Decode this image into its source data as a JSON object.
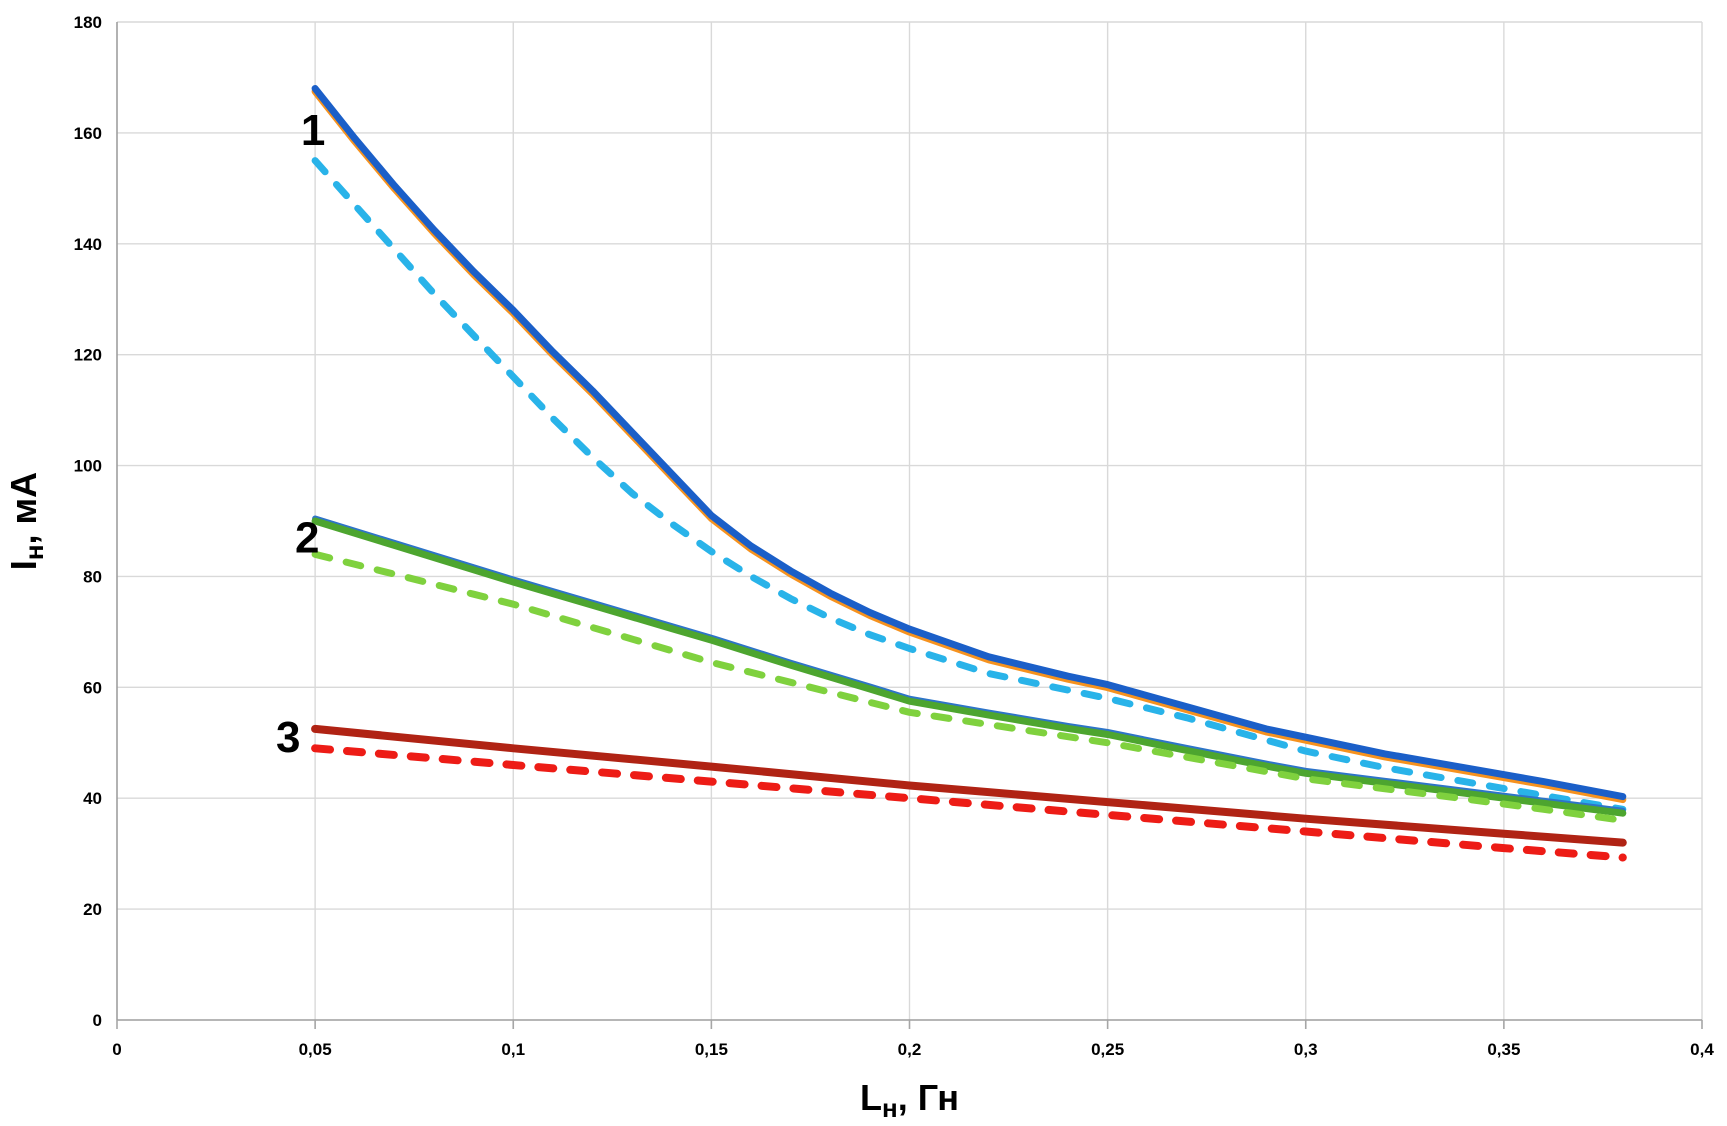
{
  "page": {
    "background": "#ffffff"
  },
  "chart_data": {
    "type": "line",
    "title": "",
    "xlabel": {
      "text": "Lн, Гн",
      "prefix": "L",
      "sub": "н",
      "suffix": ", Гн"
    },
    "ylabel": {
      "text": "Iн, мА",
      "prefix": "I",
      "sub": "н",
      "suffix": ", мА"
    },
    "xlim": [
      0,
      0.4
    ],
    "ylim": [
      0,
      180
    ],
    "grid": true,
    "legend_position": "none",
    "decimal_separator": ",",
    "colors": {
      "grid": "#d9d9d9",
      "axis": "#9e9e9e",
      "tick": "#a6a6a6",
      "text": "#000000",
      "background": "#ffffff",
      "curve1_solid": "#1B5FC8",
      "curve1_solid_edge": "#F6921E",
      "curve1_dashed": "#29B3E9",
      "curve2_solid": "#4DA52F",
      "curve2_solid_edge": "#2E74C8",
      "curve2_dashed": "#7FD13E",
      "curve3_solid": "#B02314",
      "curve3_dashed": "#ED1C16"
    },
    "x_ticks": [
      {
        "v": 0,
        "label": "0"
      },
      {
        "v": 0.05,
        "label": "0,05"
      },
      {
        "v": 0.1,
        "label": "0,1"
      },
      {
        "v": 0.15,
        "label": "0,15"
      },
      {
        "v": 0.2,
        "label": "0,2"
      },
      {
        "v": 0.25,
        "label": "0,25"
      },
      {
        "v": 0.3,
        "label": "0,3"
      },
      {
        "v": 0.35,
        "label": "0,35"
      },
      {
        "v": 0.4,
        "label": "0,4"
      }
    ],
    "y_ticks": [
      {
        "v": 0,
        "label": "0"
      },
      {
        "v": 20,
        "label": "20"
      },
      {
        "v": 40,
        "label": "40"
      },
      {
        "v": 60,
        "label": "60"
      },
      {
        "v": 80,
        "label": "80"
      },
      {
        "v": 100,
        "label": "100"
      },
      {
        "v": 120,
        "label": "120"
      },
      {
        "v": 140,
        "label": "140"
      },
      {
        "v": 160,
        "label": "160"
      },
      {
        "v": 180,
        "label": "180"
      }
    ],
    "curve_labels": [
      {
        "text": "1",
        "x": 0.0495,
        "y": 160.5
      },
      {
        "text": "2",
        "x": 0.048,
        "y": 87.0
      },
      {
        "text": "3",
        "x": 0.0432,
        "y": 51.0
      }
    ],
    "series": [
      {
        "name": "curve-1-solid",
        "curve": "1",
        "style": "solid",
        "width": 7,
        "color_key": "curve1_solid",
        "underlay": {
          "color_key": "curve1_solid_edge",
          "dy": 3,
          "width": 7
        },
        "points": [
          [
            0.05,
            168
          ],
          [
            0.06,
            159
          ],
          [
            0.07,
            150.5
          ],
          [
            0.08,
            142.5
          ],
          [
            0.09,
            135
          ],
          [
            0.1,
            128
          ],
          [
            0.11,
            120.5
          ],
          [
            0.12,
            113.5
          ],
          [
            0.13,
            106
          ],
          [
            0.14,
            98.5
          ],
          [
            0.15,
            91
          ],
          [
            0.16,
            85.5
          ],
          [
            0.17,
            81
          ],
          [
            0.18,
            77
          ],
          [
            0.19,
            73.5
          ],
          [
            0.2,
            70.5
          ],
          [
            0.22,
            65.5
          ],
          [
            0.24,
            62
          ],
          [
            0.25,
            60.5
          ],
          [
            0.27,
            56.5
          ],
          [
            0.29,
            52.5
          ],
          [
            0.3,
            51
          ],
          [
            0.32,
            48
          ],
          [
            0.34,
            45.5
          ],
          [
            0.36,
            43
          ],
          [
            0.38,
            40.3
          ]
        ]
      },
      {
        "name": "curve-1-dashed",
        "curve": "1",
        "style": "dashed",
        "width": 7,
        "color_key": "curve1_dashed",
        "points": [
          [
            0.05,
            155
          ],
          [
            0.06,
            147
          ],
          [
            0.07,
            139
          ],
          [
            0.08,
            131
          ],
          [
            0.09,
            123.5
          ],
          [
            0.1,
            116
          ],
          [
            0.11,
            108.5
          ],
          [
            0.12,
            101.5
          ],
          [
            0.13,
            95
          ],
          [
            0.14,
            89.5
          ],
          [
            0.15,
            84.5
          ],
          [
            0.16,
            80
          ],
          [
            0.17,
            76
          ],
          [
            0.18,
            72.5
          ],
          [
            0.19,
            69.5
          ],
          [
            0.2,
            67
          ],
          [
            0.22,
            62.5
          ],
          [
            0.24,
            59.5
          ],
          [
            0.25,
            58
          ],
          [
            0.27,
            54.5
          ],
          [
            0.29,
            50.5
          ],
          [
            0.3,
            48.5
          ],
          [
            0.32,
            45.5
          ],
          [
            0.34,
            43
          ],
          [
            0.36,
            40.5
          ],
          [
            0.38,
            38
          ]
        ]
      },
      {
        "name": "curve-2-solid",
        "curve": "2",
        "style": "solid",
        "width": 7,
        "color_key": "curve2_solid",
        "underlay": {
          "color_key": "curve2_solid_edge",
          "dy": -2.5,
          "width": 6
        },
        "points": [
          [
            0.05,
            90
          ],
          [
            0.07,
            85.6
          ],
          [
            0.09,
            81.2
          ],
          [
            0.1,
            79
          ],
          [
            0.12,
            74.8
          ],
          [
            0.14,
            70.6
          ],
          [
            0.15,
            68.5
          ],
          [
            0.17,
            64
          ],
          [
            0.19,
            59.7
          ],
          [
            0.2,
            57.5
          ],
          [
            0.22,
            55
          ],
          [
            0.24,
            52.6
          ],
          [
            0.25,
            51.5
          ],
          [
            0.27,
            48.6
          ],
          [
            0.29,
            45.8
          ],
          [
            0.3,
            44.5
          ],
          [
            0.32,
            42.7
          ],
          [
            0.34,
            40.9
          ],
          [
            0.36,
            39.1
          ],
          [
            0.38,
            37.3
          ]
        ]
      },
      {
        "name": "curve-2-dashed",
        "curve": "2",
        "style": "dashed",
        "width": 7,
        "color_key": "curve2_dashed",
        "points": [
          [
            0.05,
            84
          ],
          [
            0.07,
            80.4
          ],
          [
            0.09,
            76.8
          ],
          [
            0.1,
            75
          ],
          [
            0.12,
            70.8
          ],
          [
            0.14,
            66.6
          ],
          [
            0.15,
            64.5
          ],
          [
            0.17,
            60.9
          ],
          [
            0.19,
            57.3
          ],
          [
            0.2,
            55.5
          ],
          [
            0.22,
            53.3
          ],
          [
            0.24,
            51.1
          ],
          [
            0.25,
            50
          ],
          [
            0.27,
            47.4
          ],
          [
            0.29,
            44.8
          ],
          [
            0.3,
            43.5
          ],
          [
            0.32,
            41.7
          ],
          [
            0.34,
            39.9
          ],
          [
            0.36,
            38
          ],
          [
            0.38,
            36
          ]
        ]
      },
      {
        "name": "curve-3-solid",
        "curve": "3",
        "style": "solid",
        "width": 8,
        "color_key": "curve3_solid",
        "points": [
          [
            0.05,
            52.5
          ],
          [
            0.1,
            49
          ],
          [
            0.15,
            45.7
          ],
          [
            0.2,
            42.3
          ],
          [
            0.25,
            39.3
          ],
          [
            0.3,
            36.3
          ],
          [
            0.35,
            33.6
          ],
          [
            0.38,
            32
          ]
        ]
      },
      {
        "name": "curve-3-dashed",
        "curve": "3",
        "style": "dashed",
        "width": 8,
        "color_key": "curve3_dashed",
        "points": [
          [
            0.05,
            49
          ],
          [
            0.1,
            46
          ],
          [
            0.15,
            43
          ],
          [
            0.2,
            40
          ],
          [
            0.25,
            37
          ],
          [
            0.3,
            34
          ],
          [
            0.35,
            31
          ],
          [
            0.38,
            29.3
          ]
        ]
      }
    ]
  }
}
